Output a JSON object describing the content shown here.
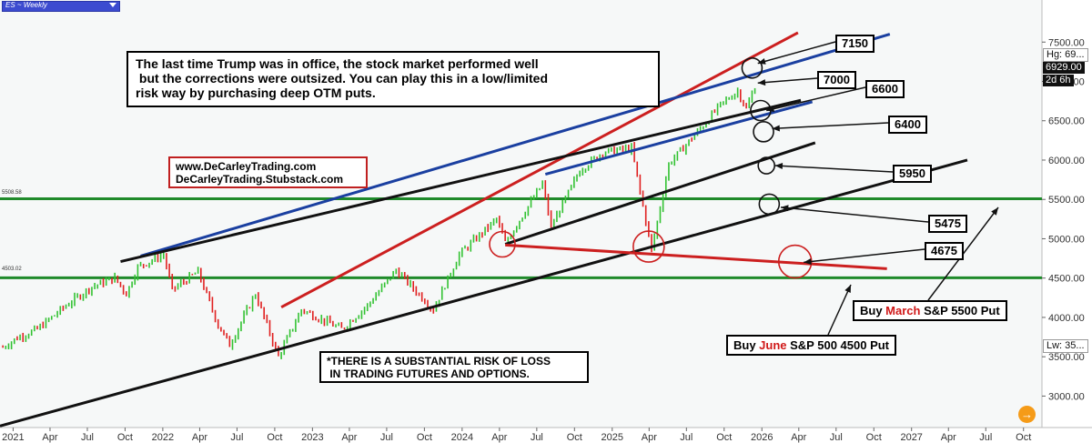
{
  "symbol_selector": "ES ~ Weekly",
  "chart_data": {
    "type": "line",
    "title": "",
    "xlabel": "",
    "ylabel": "",
    "x_range": [
      "2020-11-30",
      "2027-11-15"
    ],
    "ylim": [
      2600,
      7850
    ],
    "grid": false,
    "y_ticks": [
      "7500.00",
      "7000.00",
      "6500.00",
      "6000.00",
      "5500.00",
      "5000.00",
      "4500.00",
      "4000.00",
      "3500.00",
      "3000.00"
    ],
    "y_tick_values": [
      7500,
      7000,
      6500,
      6000,
      5500,
      5000,
      4500,
      4000,
      3500,
      3000
    ],
    "x_ticks": [
      {
        "label": "2021",
        "date": "2021-01-01",
        "year": true
      },
      {
        "label": "Apr",
        "date": "2021-04-01"
      },
      {
        "label": "Jul",
        "date": "2021-07-01"
      },
      {
        "label": "Oct",
        "date": "2021-10-01"
      },
      {
        "label": "2022",
        "date": "2022-01-01",
        "year": true
      },
      {
        "label": "Apr",
        "date": "2022-04-01"
      },
      {
        "label": "Jul",
        "date": "2022-07-01"
      },
      {
        "label": "Oct",
        "date": "2022-10-01"
      },
      {
        "label": "2023",
        "date": "2023-01-01",
        "year": true
      },
      {
        "label": "Apr",
        "date": "2023-04-01"
      },
      {
        "label": "Jul",
        "date": "2023-07-01"
      },
      {
        "label": "Oct",
        "date": "2023-10-01"
      },
      {
        "label": "2024",
        "date": "2024-01-01",
        "year": true
      },
      {
        "label": "Apr",
        "date": "2024-04-01"
      },
      {
        "label": "Jul",
        "date": "2024-07-01"
      },
      {
        "label": "Oct",
        "date": "2024-10-01"
      },
      {
        "label": "2025",
        "date": "2025-01-01",
        "year": true
      },
      {
        "label": "Apr",
        "date": "2025-04-01"
      },
      {
        "label": "Jul",
        "date": "2025-07-01"
      },
      {
        "label": "Oct",
        "date": "2025-10-01"
      },
      {
        "label": "2026",
        "date": "2026-01-01",
        "year": true
      },
      {
        "label": "Apr",
        "date": "2026-04-01"
      },
      {
        "label": "Jul",
        "date": "2026-07-01"
      },
      {
        "label": "Oct",
        "date": "2026-10-01"
      },
      {
        "label": "2027",
        "date": "2027-01-01",
        "year": true
      },
      {
        "label": "Apr",
        "date": "2027-04-01"
      },
      {
        "label": "Jul",
        "date": "2027-07-01"
      },
      {
        "label": "Oct",
        "date": "2027-10-01"
      }
    ],
    "price_path": [
      [
        "2020-12-07",
        3620
      ],
      [
        "2021-01-11",
        3740
      ],
      [
        "2021-03-01",
        3850
      ],
      [
        "2021-05-10",
        4150
      ],
      [
        "2021-07-12",
        4390
      ],
      [
        "2021-09-06",
        4500
      ],
      [
        "2021-10-04",
        4300
      ],
      [
        "2021-11-01",
        4640
      ],
      [
        "2022-01-03",
        4800
      ],
      [
        "2022-01-24",
        4350
      ],
      [
        "2022-03-28",
        4580
      ],
      [
        "2022-05-16",
        3900
      ],
      [
        "2022-06-13",
        3650
      ],
      [
        "2022-08-15",
        4300
      ],
      [
        "2022-10-10",
        3500
      ],
      [
        "2022-12-05",
        4100
      ],
      [
        "2023-03-13",
        3850
      ],
      [
        "2023-05-15",
        4150
      ],
      [
        "2023-07-24",
        4600
      ],
      [
        "2023-10-23",
        4100
      ],
      [
        "2023-12-25",
        4800
      ],
      [
        "2024-03-25",
        5250
      ],
      [
        "2024-04-15",
        4950
      ],
      [
        "2024-07-15",
        5700
      ],
      [
        "2024-08-05",
        5150
      ],
      [
        "2024-10-14",
        5870
      ],
      [
        "2024-12-09",
        6100
      ],
      [
        "2025-02-17",
        6150
      ],
      [
        "2025-04-07",
        4850
      ],
      [
        "2025-05-19",
        5950
      ],
      [
        "2025-08-04",
        6400
      ],
      [
        "2025-09-22",
        6700
      ],
      [
        "2025-11-03",
        6880
      ],
      [
        "2025-11-24",
        6650
      ],
      [
        "2025-12-15",
        6929
      ]
    ],
    "horizontal_levels": [
      {
        "value": 5508.58,
        "label": "5508.58",
        "color": "#1f8a2a"
      },
      {
        "value": 4503.02,
        "label": "4503.02",
        "color": "#1f8a2a"
      }
    ],
    "trendlines": [
      {
        "color": "#cc1f1f",
        "from": [
          "2022-10-17",
          4130
        ],
        "to": [
          "2026-03-30",
          7620
        ]
      },
      {
        "color": "#1a3fa0",
        "from": [
          "2021-11-08",
          4780
        ],
        "to": [
          "2026-11-09",
          7600
        ]
      },
      {
        "color": "#1a3fa0",
        "from": [
          "2024-07-22",
          5820
        ],
        "to": [
          "2026-05-04",
          6740
        ]
      },
      {
        "color": "#111111",
        "from": [
          "2021-09-20",
          4710
        ],
        "to": [
          "2026-04-06",
          6760
        ]
      },
      {
        "color": "#111111",
        "from": [
          "2024-04-15",
          4930
        ],
        "to": [
          "2026-05-11",
          6220
        ]
      },
      {
        "color": "#111111",
        "from": [
          "2020-11-30",
          2620
        ],
        "to": [
          "2027-05-17",
          6000
        ]
      },
      {
        "color": "#cc1f1f",
        "from": [
          "2024-04-15",
          4920
        ],
        "to": [
          "2026-11-02",
          4620
        ]
      }
    ],
    "circles": [
      {
        "at": [
          "2025-12-08",
          7170
        ],
        "r": 11
      },
      {
        "at": [
          "2025-12-29",
          6630
        ],
        "r": 11
      },
      {
        "at": [
          "2026-01-05",
          6360
        ],
        "r": 11
      },
      {
        "at": [
          "2026-01-12",
          5930
        ],
        "r": 9
      },
      {
        "at": [
          "2026-01-19",
          5440
        ],
        "r": 11
      },
      {
        "at": [
          "2024-04-08",
          4930
        ],
        "r": 14
      },
      {
        "at": [
          "2025-03-31",
          4900
        ],
        "r": 17
      },
      {
        "at": [
          "2026-03-23",
          4710
        ],
        "r": 18
      }
    ],
    "level_labels": [
      {
        "label": "7150",
        "arrow_to": [
          "2025-12-22",
          7230
        ]
      },
      {
        "label": "7000",
        "arrow_to": [
          "2025-12-22",
          6980
        ]
      },
      {
        "label": "6600",
        "arrow_to": [
          "2026-01-12",
          6630
        ]
      },
      {
        "label": "6400",
        "arrow_to": [
          "2026-01-26",
          6400
        ]
      },
      {
        "label": "5950",
        "arrow_to": [
          "2026-02-02",
          5930
        ]
      },
      {
        "label": "5475",
        "arrow_to": [
          "2026-02-16",
          5400
        ]
      },
      {
        "label": "4675",
        "arrow_to": [
          "2026-04-13",
          4700
        ]
      }
    ],
    "price_labels": {
      "high_tag": "Hg: 69...",
      "last_tag": "6929.00",
      "countdown_tag": "2d 6h",
      "low_tag": "Lw: 35..."
    }
  },
  "annotations": {
    "headline": "The last time Trump was in office, the stock market performed well\n but the corrections were outsized. You can play this in a low/limited\nrisk way by purchasing deep OTM puts.",
    "website_1": "www.DeCarleyTrading.com",
    "website_2": "DeCarleyTrading.Stubstack.com",
    "risk": "*THERE IS A SUBSTANTIAL RISK OF LOSS\n IN TRADING FUTURES AND OPTIONS."
  },
  "trades": {
    "march": {
      "pre": "Buy ",
      "month": "March",
      "post": " S&P 5500 Put"
    },
    "june": {
      "pre": "Buy ",
      "month": "June",
      "post": " S&P 500 4500 Put"
    }
  },
  "nav_button_icon": "arrow-right-icon",
  "colors": {
    "candle_up": "#32c232",
    "candle_down": "#e02020",
    "grid_level": "#1f8a2a",
    "accent": "#f59b18"
  }
}
